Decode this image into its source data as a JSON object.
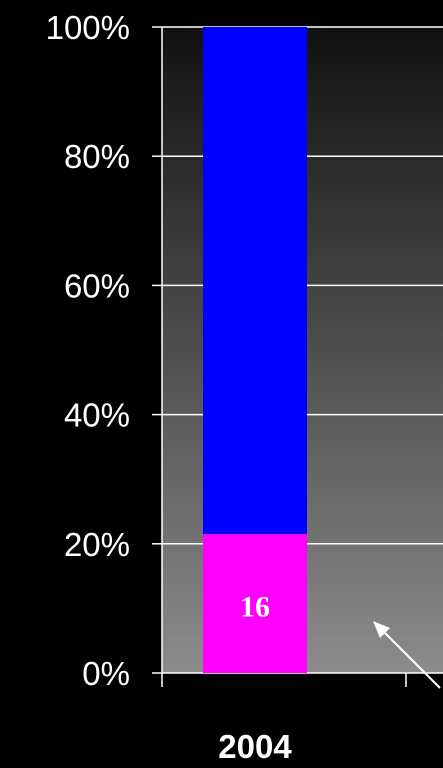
{
  "chart_data": {
    "type": "bar",
    "stacked": true,
    "normalized": true,
    "categories": [
      "2004"
    ],
    "series": [
      {
        "values": [
          21.5
        ],
        "color": "#ff00ff",
        "data_labels": [
          "16"
        ]
      },
      {
        "values": [
          78.5
        ],
        "color": "#0000ff"
      }
    ],
    "y_ticks": [
      "0%",
      "20%",
      "40%",
      "60%",
      "80%",
      "100%"
    ],
    "ylim": [
      0,
      100
    ],
    "grid": true,
    "legend": "none",
    "annotation": "arrow pointing to the magenta segment",
    "colors": {
      "page_background": "#000000",
      "plot_background_top": "#111111",
      "plot_background_bottom": "#8c8c8c",
      "gridline": "#ffffff",
      "text": "#ffffff"
    }
  }
}
